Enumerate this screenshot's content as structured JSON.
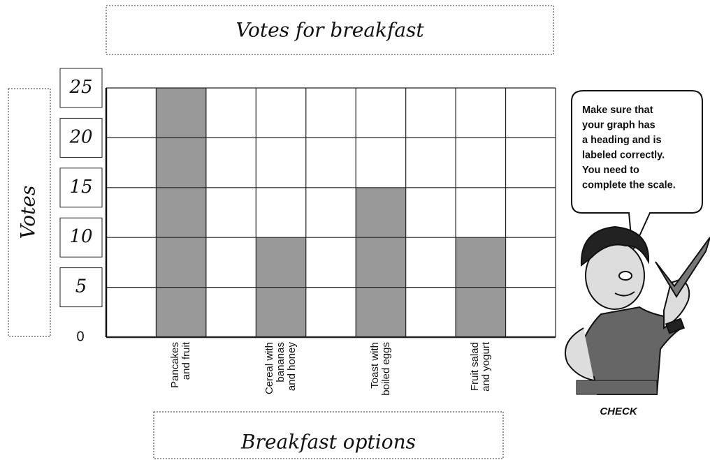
{
  "chart_data": {
    "type": "bar",
    "title": "Votes for breakfast",
    "x_label": "Breakfast options",
    "y_label": "Votes",
    "categories": [
      null,
      "Pancakes\nand fruit",
      null,
      "Cereal with\nbananas\nand honey",
      null,
      "Toast with\nboiled eggs",
      null,
      "Fruit salad\nand yogurt",
      null
    ],
    "values": [
      null,
      25,
      null,
      10,
      null,
      15,
      null,
      10,
      null
    ],
    "color": "#999999",
    "ylim": [
      0,
      25
    ],
    "yticks": [
      0,
      5,
      10,
      15,
      20,
      25
    ],
    "grid": true,
    "callout": [
      "Make sure that",
      "your graph has",
      "a heading and is",
      "labeled correctly.",
      "You need to",
      "complete the scale."
    ],
    "character_label": "CHECK"
  }
}
